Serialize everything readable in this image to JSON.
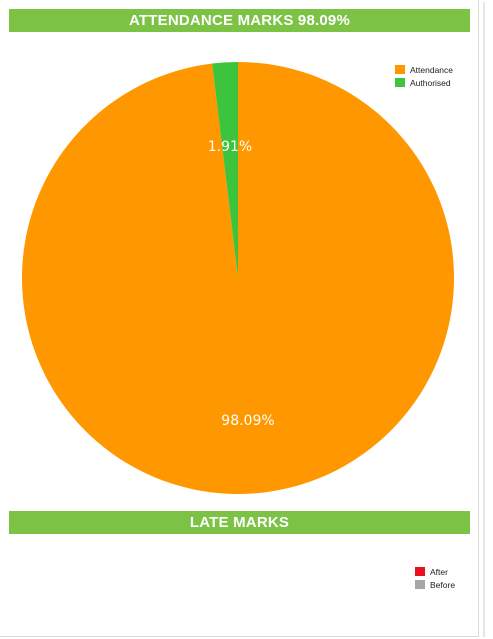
{
  "panel": {
    "attendance_title": "ATTENDANCE MARKS 98.09%",
    "late_title": "LATE MARKS",
    "header_color": "#7cc245"
  },
  "chart_data": [
    {
      "type": "pie",
      "title": "ATTENDANCE MARKS 98.09%",
      "legend_position": "top-right",
      "slices": [
        {
          "name": "Attendance",
          "value": 98.09,
          "label": "98.09%",
          "color": "#ff9800"
        },
        {
          "name": "Authorised",
          "value": 1.91,
          "label": "1.91%",
          "color": "#3cc43c"
        }
      ]
    },
    {
      "type": "pie",
      "title": "LATE MARKS",
      "legend_position": "right",
      "slices": [
        {
          "name": "After",
          "value": null,
          "color": "#e8101c"
        },
        {
          "name": "Before",
          "value": null,
          "color": "#a6a6a6"
        }
      ]
    }
  ]
}
